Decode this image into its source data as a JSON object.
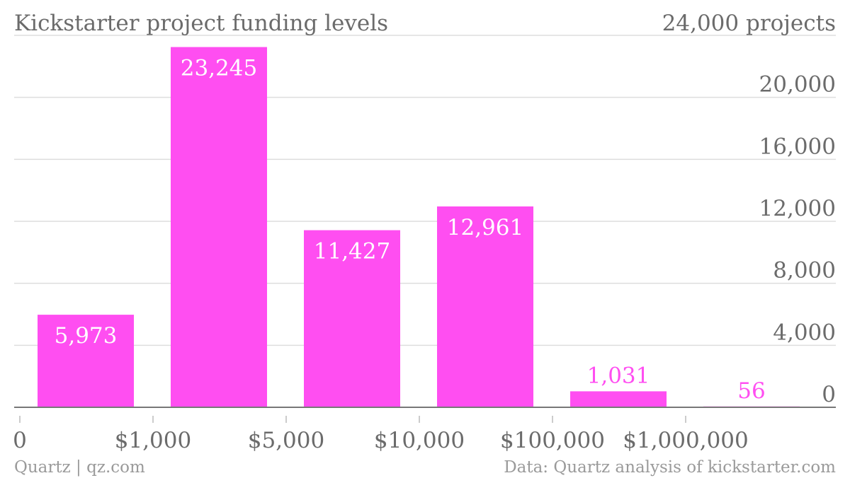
{
  "chart_data": {
    "type": "bar",
    "title": "Kickstarter project funding levels",
    "ylabel": "projects",
    "y_top_label": "24,000 projects",
    "ylim": [
      0,
      24000
    ],
    "yticks": [
      0,
      4000,
      8000,
      12000,
      16000,
      20000
    ],
    "ytick_labels": [
      "0",
      "4,000",
      "8,000",
      "12,000",
      "16,000",
      "20,000"
    ],
    "bin_edges": [
      "0",
      "$1,000",
      "$5,000",
      "$10,000",
      "$100,000",
      "$1,000,000"
    ],
    "values": [
      5973,
      23245,
      11427,
      12961,
      1031,
      56
    ],
    "value_labels": [
      "5,973",
      "23,245",
      "11,427",
      "12,961",
      "1,031",
      "56"
    ],
    "grid": true,
    "colors": {
      "bar": "#ff4ef1",
      "label_inside": "#ffffff",
      "label_outside": "#ff4ef1",
      "text": "#6b6b6b",
      "footer": "#9a9a9a",
      "grid": "#dddddd"
    }
  },
  "footer": {
    "source_left": "Quartz | qz.com",
    "source_right": "Data: Quartz analysis of kickstarter.com"
  }
}
